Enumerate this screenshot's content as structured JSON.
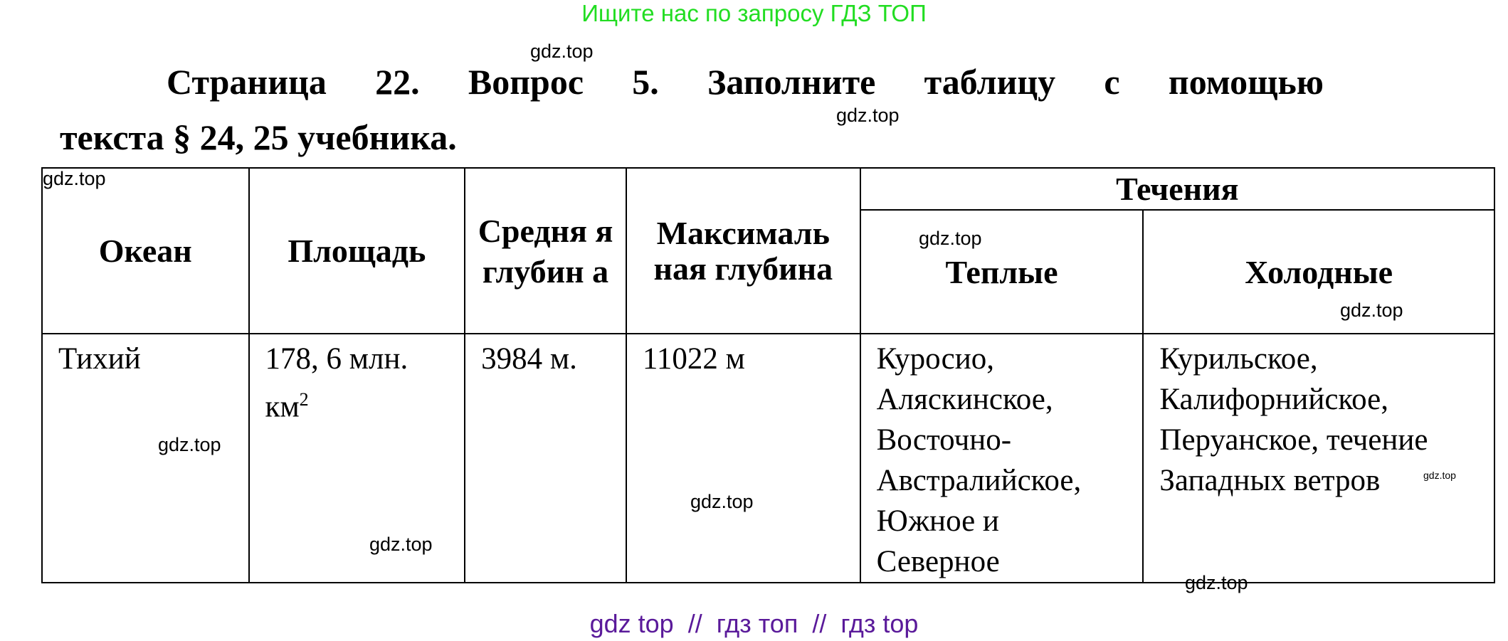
{
  "banner": "Ищите нас по запросу ГДЗ ТОП",
  "title": {
    "line1": "Страница 22. Вопрос 5. Заполните таблицу с помощью",
    "line2": "текста § 24, 25 учебника."
  },
  "watermark": "gdz.top",
  "table": {
    "headers": {
      "ocean": "Океан",
      "area": "Площадь",
      "avg_depth": "Средня я глубин а",
      "max_depth": "Максималь ная глубина",
      "currents": "Течения",
      "warm": "Теплые",
      "cold": "Холодные"
    },
    "rows": [
      {
        "ocean": "Тихий",
        "area": "178, 6 млн. км",
        "area_sup": "2",
        "avg_depth": "3984 м.",
        "max_depth": "11022 м",
        "warm": "Куросио, Аляскинское, Восточно-Австралийское, Южное и Северное",
        "cold": "Курильское, Калифорнийское, Перуанское, течение Западных ветров"
      }
    ]
  },
  "footer": "gdz top  //  гдз топ  //  гдз top"
}
